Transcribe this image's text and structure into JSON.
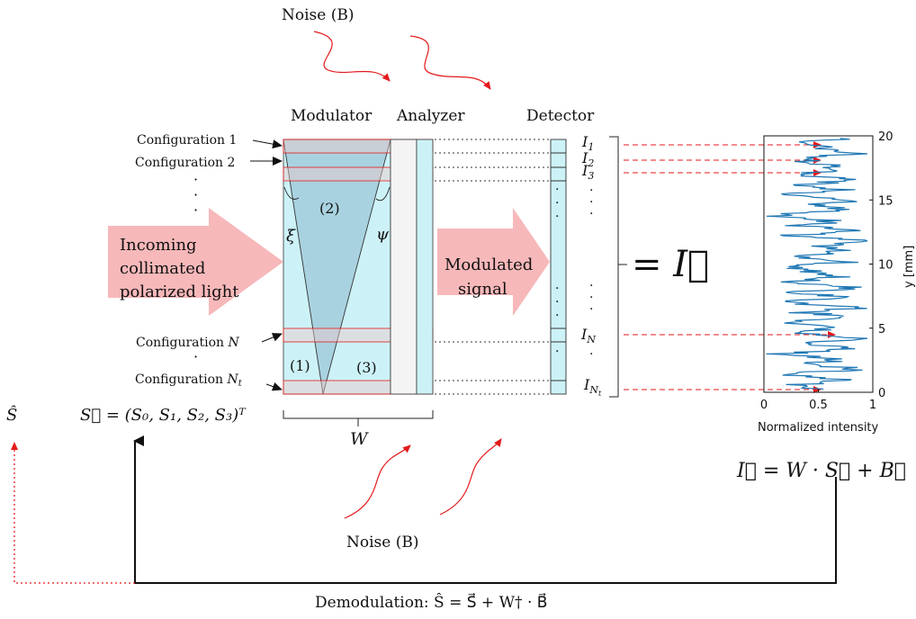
{
  "labels": {
    "noise_top": "Noise (B)",
    "noise_bottom": "Noise (B)",
    "modulator": "Modulator",
    "analyzer": "Analyzer",
    "detector": "Detector",
    "config_1": "Configuration 1",
    "config_2": "Configuration 2",
    "config_n_prefix": "Configuration ",
    "config_n_var": "N",
    "config_nt_prefix": "Configuration ",
    "config_nt_var": "N",
    "config_nt_sub": "t",
    "region_1": "(1)",
    "region_2": "(2)",
    "region_3": "(3)",
    "xi": "ξ",
    "psi": "ψ",
    "width_label": "W",
    "incoming_line1": "Incoming",
    "incoming_line2": "collimated",
    "incoming_line3": "polarized light",
    "modulated_line1": "Modulated",
    "modulated_line2": "signal",
    "I_vector": "= I⃗",
    "I1": "I",
    "I1_sub": "1",
    "I2": "I",
    "I2_sub": "2",
    "I3": "I",
    "I3_sub": "3",
    "IN": "I",
    "IN_sub": "N",
    "INt": "I",
    "INt_sub": "N",
    "INt_subsub": "t",
    "S_hat": "Ŝ",
    "S_vector_eq": "S⃗ = (S₀, S₁, S₂, S₃)ᵀ",
    "measurement_eq": "I⃗ = W · S⃗ + B⃗",
    "demodulation_eq": "Demodulation:  Ŝ = S⃗ + W† · B⃗"
  },
  "colors": {
    "arrow_pink": "#f7b8ba",
    "modulator_fill": "#ccf2f7",
    "wedge_fill": "#a9d2e0",
    "analyzer_fill": "#ccf2f7",
    "detector_fill": "#ccf2f7",
    "config_band": "#f0c8c8",
    "red": "#e41a1c",
    "plot_line": "#1f77b4"
  },
  "chart_data": {
    "type": "line",
    "title": "",
    "xlabel": "Normalized intensity",
    "ylabel": "y [mm]",
    "xlim": [
      0,
      1
    ],
    "ylim": [
      0,
      20
    ],
    "xticks": [
      "0",
      "0.5",
      "1"
    ],
    "yticks": [
      "0",
      "5",
      "10",
      "15",
      "20"
    ],
    "series": [
      {
        "y": [
          0.2,
          0.6,
          1.0,
          1.4,
          1.8,
          2.2,
          2.6,
          3.0,
          3.4,
          3.8,
          4.2,
          4.6,
          5.0,
          5.4,
          5.8,
          6.2,
          6.6,
          7.0,
          7.4,
          7.8,
          8.2,
          8.6,
          9.0,
          9.4,
          9.8,
          10.2,
          10.6,
          11.0,
          11.4,
          11.8,
          12.2,
          12.6,
          13.0,
          13.4,
          13.8,
          14.2,
          14.6,
          15.0,
          15.4,
          15.8,
          16.2,
          16.6,
          17.0,
          17.4,
          17.8,
          18.2,
          18.6,
          19.0,
          19.4,
          19.8
        ],
        "x": [
          0.55,
          0.35,
          0.75,
          0.2,
          0.85,
          0.4,
          0.7,
          0.15,
          0.8,
          0.45,
          0.9,
          0.3,
          0.65,
          0.1,
          0.8,
          0.4,
          0.85,
          0.2,
          0.7,
          0.35,
          0.9,
          0.25,
          0.75,
          0.5,
          0.15,
          0.85,
          0.3,
          0.7,
          0.45,
          0.9,
          0.2,
          0.8,
          0.35,
          0.65,
          0.1,
          0.75,
          0.45,
          0.85,
          0.25,
          0.7,
          0.4,
          0.9,
          0.2,
          0.75,
          0.5,
          0.3,
          0.8,
          0.6,
          0.35,
          0.7
        ]
      }
    ]
  }
}
